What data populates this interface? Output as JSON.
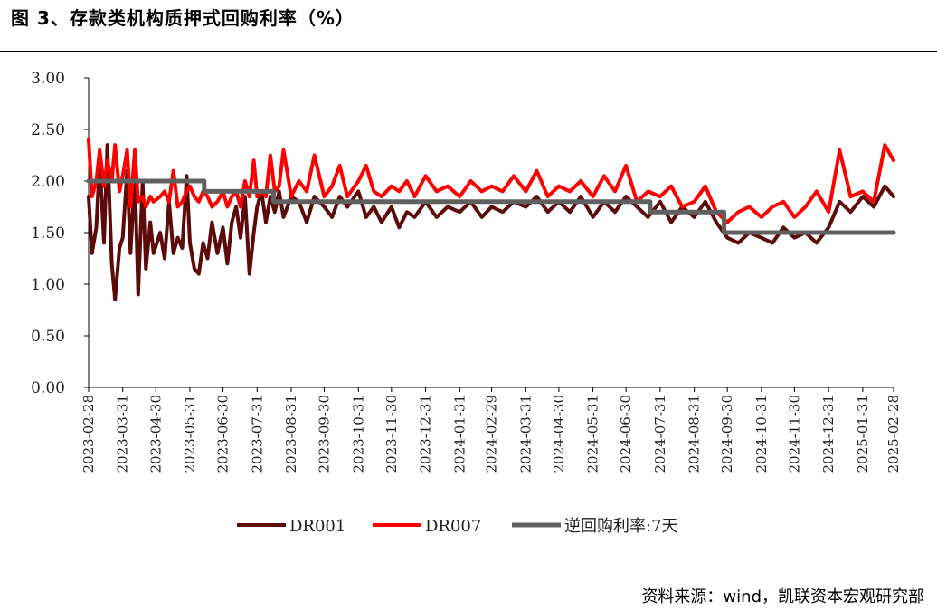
{
  "title": "图 3、存款类机构质押式回购利率（%）",
  "source": "资料来源：wind，凯联资本宏观研究部",
  "chart_data": {
    "type": "line",
    "title": "图 3、存款类机构质押式回购利率（%）",
    "xlabel": "",
    "ylabel": "",
    "ylim": [
      0,
      3
    ],
    "ytick_labels": [
      "0.00",
      "0.50",
      "1.00",
      "1.50",
      "2.00",
      "2.50",
      "3.00"
    ],
    "xlim": [
      "2023-02-28",
      "2025-02-28"
    ],
    "xtick_labels": [
      "2023-02-28",
      "2023-03-31",
      "2023-04-30",
      "2023-05-31",
      "2023-06-30",
      "2023-07-31",
      "2023-08-31",
      "2023-09-30",
      "2023-10-31",
      "2023-11-30",
      "2023-12-31",
      "2024-01-31",
      "2024-02-29",
      "2024-03-31",
      "2024-04-30",
      "2024-05-31",
      "2024-06-30",
      "2024-07-31",
      "2024-08-31",
      "2024-09-30",
      "2024-10-31",
      "2024-11-30",
      "2024-12-31",
      "2025-01-31",
      "2025-02-28"
    ],
    "grid": false,
    "legend_position": "bottom",
    "series": [
      {
        "name": "DR001",
        "color": "#5c0a0a",
        "x": [
          "2023-02-28",
          "2023-03-03",
          "2023-03-07",
          "2023-03-10",
          "2023-03-14",
          "2023-03-17",
          "2023-03-21",
          "2023-03-24",
          "2023-03-28",
          "2023-03-31",
          "2023-04-04",
          "2023-04-07",
          "2023-04-11",
          "2023-04-14",
          "2023-04-18",
          "2023-04-21",
          "2023-04-25",
          "2023-04-28",
          "2023-05-04",
          "2023-05-08",
          "2023-05-12",
          "2023-05-16",
          "2023-05-20",
          "2023-05-24",
          "2023-05-28",
          "2023-05-31",
          "2023-06-04",
          "2023-06-08",
          "2023-06-12",
          "2023-06-16",
          "2023-06-20",
          "2023-06-25",
          "2023-06-30",
          "2023-07-04",
          "2023-07-08",
          "2023-07-12",
          "2023-07-16",
          "2023-07-20",
          "2023-07-24",
          "2023-07-28",
          "2023-07-31",
          "2023-08-04",
          "2023-08-08",
          "2023-08-12",
          "2023-08-16",
          "2023-08-20",
          "2023-08-24",
          "2023-08-31",
          "2023-09-07",
          "2023-09-14",
          "2023-09-21",
          "2023-09-30",
          "2023-10-07",
          "2023-10-14",
          "2023-10-21",
          "2023-10-31",
          "2023-11-07",
          "2023-11-14",
          "2023-11-21",
          "2023-11-30",
          "2023-12-07",
          "2023-12-14",
          "2023-12-21",
          "2023-12-31",
          "2024-01-10",
          "2024-01-20",
          "2024-01-31",
          "2024-02-10",
          "2024-02-20",
          "2024-02-29",
          "2024-03-10",
          "2024-03-20",
          "2024-03-31",
          "2024-04-10",
          "2024-04-20",
          "2024-04-30",
          "2024-05-10",
          "2024-05-20",
          "2024-05-31",
          "2024-06-10",
          "2024-06-20",
          "2024-06-30",
          "2024-07-10",
          "2024-07-20",
          "2024-07-31",
          "2024-08-10",
          "2024-08-20",
          "2024-08-31",
          "2024-09-10",
          "2024-09-20",
          "2024-09-30",
          "2024-10-10",
          "2024-10-20",
          "2024-10-31",
          "2024-11-10",
          "2024-11-20",
          "2024-11-30",
          "2024-12-10",
          "2024-12-20",
          "2024-12-31",
          "2025-01-10",
          "2025-01-20",
          "2025-01-31",
          "2025-02-10",
          "2025-02-20",
          "2025-02-28"
        ],
        "values": [
          1.85,
          1.3,
          1.55,
          2.2,
          1.4,
          2.35,
          1.2,
          0.85,
          1.35,
          1.45,
          2.1,
          1.3,
          2.05,
          0.9,
          2.0,
          1.15,
          1.6,
          1.3,
          1.5,
          1.25,
          1.8,
          1.3,
          1.45,
          1.35,
          2.05,
          1.4,
          1.15,
          1.1,
          1.4,
          1.25,
          1.6,
          1.3,
          1.55,
          1.2,
          1.6,
          1.75,
          1.45,
          1.85,
          1.1,
          1.5,
          1.75,
          1.9,
          1.6,
          1.85,
          1.7,
          1.9,
          1.65,
          1.85,
          1.8,
          1.6,
          1.85,
          1.75,
          1.65,
          1.85,
          1.75,
          1.9,
          1.65,
          1.75,
          1.6,
          1.75,
          1.55,
          1.7,
          1.65,
          1.8,
          1.65,
          1.75,
          1.7,
          1.8,
          1.65,
          1.75,
          1.7,
          1.8,
          1.75,
          1.85,
          1.7,
          1.8,
          1.7,
          1.85,
          1.65,
          1.8,
          1.7,
          1.85,
          1.75,
          1.65,
          1.8,
          1.6,
          1.75,
          1.65,
          1.8,
          1.6,
          1.45,
          1.4,
          1.5,
          1.45,
          1.4,
          1.55,
          1.45,
          1.5,
          1.4,
          1.55,
          1.8,
          1.7,
          1.85,
          1.75,
          1.95,
          1.85
        ]
      },
      {
        "name": "DR007",
        "color": "#ff0000",
        "x": [
          "2023-02-28",
          "2023-03-03",
          "2023-03-07",
          "2023-03-10",
          "2023-03-14",
          "2023-03-17",
          "2023-03-21",
          "2023-03-24",
          "2023-03-28",
          "2023-03-31",
          "2023-04-04",
          "2023-04-07",
          "2023-04-11",
          "2023-04-14",
          "2023-04-18",
          "2023-04-21",
          "2023-04-25",
          "2023-04-28",
          "2023-05-04",
          "2023-05-08",
          "2023-05-12",
          "2023-05-16",
          "2023-05-20",
          "2023-05-24",
          "2023-05-28",
          "2023-05-31",
          "2023-06-04",
          "2023-06-08",
          "2023-06-12",
          "2023-06-16",
          "2023-06-20",
          "2023-06-25",
          "2023-06-30",
          "2023-07-04",
          "2023-07-08",
          "2023-07-12",
          "2023-07-16",
          "2023-07-20",
          "2023-07-24",
          "2023-07-28",
          "2023-07-31",
          "2023-08-04",
          "2023-08-08",
          "2023-08-12",
          "2023-08-16",
          "2023-08-20",
          "2023-08-24",
          "2023-08-31",
          "2023-09-07",
          "2023-09-14",
          "2023-09-21",
          "2023-09-30",
          "2023-10-07",
          "2023-10-14",
          "2023-10-21",
          "2023-10-31",
          "2023-11-07",
          "2023-11-14",
          "2023-11-21",
          "2023-11-30",
          "2023-12-07",
          "2023-12-14",
          "2023-12-21",
          "2023-12-31",
          "2024-01-10",
          "2024-01-20",
          "2024-01-31",
          "2024-02-10",
          "2024-02-20",
          "2024-02-29",
          "2024-03-10",
          "2024-03-20",
          "2024-03-31",
          "2024-04-10",
          "2024-04-20",
          "2024-04-30",
          "2024-05-10",
          "2024-05-20",
          "2024-05-31",
          "2024-06-10",
          "2024-06-20",
          "2024-06-30",
          "2024-07-10",
          "2024-07-20",
          "2024-07-31",
          "2024-08-10",
          "2024-08-20",
          "2024-08-31",
          "2024-09-10",
          "2024-09-20",
          "2024-09-30",
          "2024-10-10",
          "2024-10-20",
          "2024-10-31",
          "2024-11-10",
          "2024-11-20",
          "2024-11-30",
          "2024-12-10",
          "2024-12-20",
          "2024-12-31",
          "2025-01-10",
          "2025-01-20",
          "2025-01-31",
          "2025-02-10",
          "2025-02-20",
          "2025-02-28"
        ],
        "values": [
          2.4,
          1.85,
          2.0,
          2.3,
          1.95,
          2.2,
          2.0,
          2.35,
          1.9,
          2.05,
          2.3,
          1.75,
          2.3,
          1.8,
          1.85,
          1.75,
          1.85,
          1.8,
          1.85,
          1.9,
          1.8,
          2.1,
          1.75,
          1.8,
          1.9,
          1.95,
          1.85,
          1.8,
          1.9,
          1.85,
          1.75,
          1.8,
          1.9,
          1.75,
          1.85,
          1.9,
          1.75,
          2.0,
          1.85,
          2.2,
          1.85,
          1.9,
          1.85,
          2.25,
          1.9,
          1.95,
          2.3,
          1.85,
          2.0,
          1.9,
          2.25,
          1.85,
          1.95,
          2.15,
          1.85,
          2.0,
          2.15,
          1.9,
          1.85,
          1.95,
          1.9,
          2.0,
          1.85,
          2.05,
          1.9,
          1.95,
          1.85,
          2.0,
          1.9,
          1.95,
          1.9,
          2.05,
          1.9,
          2.1,
          1.85,
          1.95,
          1.9,
          2.0,
          1.85,
          2.05,
          1.9,
          2.15,
          1.8,
          1.9,
          1.85,
          1.95,
          1.75,
          1.8,
          1.95,
          1.7,
          1.6,
          1.7,
          1.75,
          1.65,
          1.75,
          1.8,
          1.65,
          1.75,
          1.9,
          1.7,
          2.3,
          1.85,
          1.9,
          1.8,
          2.35,
          2.2
        ]
      },
      {
        "name": "逆回购利率:7天",
        "color": "#606060",
        "step": true,
        "x": [
          "2023-02-28",
          "2023-06-13",
          "2023-06-13",
          "2023-08-15",
          "2023-08-15",
          "2024-07-22",
          "2024-07-22",
          "2024-09-27",
          "2024-09-27",
          "2025-02-28"
        ],
        "values": [
          2.0,
          2.0,
          1.9,
          1.9,
          1.8,
          1.8,
          1.7,
          1.7,
          1.5,
          1.5
        ]
      }
    ]
  }
}
